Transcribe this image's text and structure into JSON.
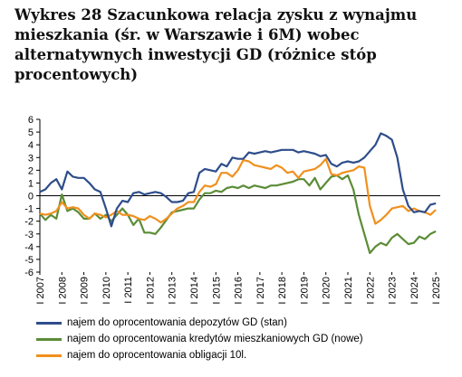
{
  "title": "Wykres 28 Szacunkowa relacja zysku z wynajmu\nmieszkania (śr. w Warszawie i 6M) wobec\nalternatywnych inwestycji GD (różnice stóp\nprocentowych)",
  "chart_data": {
    "type": "line",
    "ylim": [
      -6,
      6
    ],
    "yticks": [
      6,
      5,
      4,
      3,
      2,
      1,
      0,
      -1,
      -2,
      -3,
      -4,
      -5,
      -6
    ],
    "xlim": [
      2007,
      2025.2
    ],
    "xtick_labels": [
      "I 2007",
      "I 2008",
      "I 2009",
      "I 2010",
      "I 2011",
      "I 2012",
      "I 2013",
      "I 2014",
      "I 2015",
      "I 2016",
      "I 2017",
      "I 2018",
      "I 2019",
      "I 2020",
      "I 2021",
      "I 2022",
      "I 2023",
      "I 2024",
      "I 2025"
    ],
    "grid": false,
    "legend_position": "bottom",
    "series": [
      {
        "name": "najem do oprocentowania depozytów GD (stan)",
        "color": "#2E4D8A",
        "x": [
          2007.0,
          2007.25,
          2007.5,
          2007.75,
          2008.0,
          2008.25,
          2008.5,
          2008.75,
          2009.0,
          2009.25,
          2009.5,
          2009.75,
          2010.0,
          2010.25,
          2010.5,
          2010.75,
          2011.0,
          2011.25,
          2011.5,
          2011.75,
          2012.0,
          2012.25,
          2012.5,
          2012.75,
          2013.0,
          2013.25,
          2013.5,
          2013.75,
          2014.0,
          2014.25,
          2014.5,
          2014.75,
          2015.0,
          2015.25,
          2015.5,
          2015.75,
          2016.0,
          2016.25,
          2016.5,
          2016.75,
          2017.0,
          2017.25,
          2017.5,
          2017.75,
          2018.0,
          2018.25,
          2018.5,
          2018.75,
          2019.0,
          2019.25,
          2019.5,
          2019.75,
          2020.0,
          2020.25,
          2020.5,
          2020.75,
          2021.0,
          2021.25,
          2021.5,
          2021.75,
          2022.0,
          2022.25,
          2022.5,
          2022.75,
          2023.0,
          2023.25,
          2023.5,
          2023.75,
          2024.0,
          2024.25,
          2024.5,
          2024.75,
          2025.0
        ],
        "y": [
          0.3,
          0.5,
          1.0,
          1.3,
          0.5,
          1.9,
          1.5,
          1.4,
          1.4,
          1.0,
          0.5,
          0.3,
          -1.0,
          -2.4,
          -1.0,
          -0.4,
          -0.5,
          0.2,
          0.3,
          0.1,
          0.2,
          0.3,
          0.2,
          -0.1,
          -0.5,
          -0.5,
          -0.4,
          0.2,
          0.3,
          1.8,
          2.1,
          2.0,
          1.9,
          2.5,
          2.3,
          3.0,
          2.9,
          2.9,
          3.4,
          3.3,
          3.4,
          3.5,
          3.4,
          3.5,
          3.6,
          3.6,
          3.6,
          3.4,
          3.5,
          3.4,
          3.3,
          3.1,
          3.2,
          2.5,
          2.3,
          2.6,
          2.7,
          2.6,
          2.7,
          3.0,
          3.5,
          4.0,
          4.9,
          4.7,
          4.4,
          3.0,
          0.5,
          -0.8,
          -1.3,
          -1.2,
          -1.3,
          -0.7,
          -0.6
        ]
      },
      {
        "name": "najem do oprocentowania kredytów mieszkaniowych GD (nowe)",
        "color": "#5B8C36",
        "x": [
          2007.0,
          2007.25,
          2007.5,
          2007.75,
          2008.0,
          2008.25,
          2008.5,
          2008.75,
          2009.0,
          2009.25,
          2009.5,
          2009.75,
          2010.0,
          2010.25,
          2010.5,
          2010.75,
          2011.0,
          2011.25,
          2011.5,
          2011.75,
          2012.0,
          2012.25,
          2012.5,
          2012.75,
          2013.0,
          2013.25,
          2013.5,
          2013.75,
          2014.0,
          2014.25,
          2014.5,
          2014.75,
          2015.0,
          2015.25,
          2015.5,
          2015.75,
          2016.0,
          2016.25,
          2016.5,
          2016.75,
          2017.0,
          2017.25,
          2017.5,
          2017.75,
          2018.0,
          2018.25,
          2018.5,
          2018.75,
          2019.0,
          2019.25,
          2019.5,
          2019.75,
          2020.0,
          2020.25,
          2020.5,
          2020.75,
          2021.0,
          2021.25,
          2021.5,
          2021.75,
          2022.0,
          2022.25,
          2022.5,
          2022.75,
          2023.0,
          2023.25,
          2023.5,
          2023.75,
          2024.0,
          2024.25,
          2024.5,
          2024.75,
          2025.0
        ],
        "y": [
          -1.4,
          -1.9,
          -1.5,
          -1.8,
          0.1,
          -1.2,
          -1.0,
          -1.3,
          -1.8,
          -1.8,
          -1.4,
          -1.8,
          -1.5,
          -2.0,
          -1.5,
          -1.0,
          -1.5,
          -2.3,
          -1.8,
          -2.9,
          -2.9,
          -3.0,
          -2.5,
          -1.9,
          -1.3,
          -1.2,
          -1.1,
          -1.0,
          -1.0,
          -0.3,
          0.2,
          0.2,
          0.4,
          0.3,
          0.6,
          0.7,
          0.6,
          0.8,
          0.6,
          0.8,
          0.7,
          0.6,
          0.8,
          0.8,
          0.9,
          1.0,
          1.1,
          1.3,
          1.3,
          0.8,
          1.4,
          0.5,
          1.0,
          1.5,
          1.6,
          1.3,
          1.6,
          0.5,
          -1.5,
          -3.0,
          -4.5,
          -4.0,
          -3.7,
          -3.9,
          -3.3,
          -3.0,
          -3.4,
          -3.8,
          -3.7,
          -3.2,
          -3.4,
          -3.0,
          -2.8
        ]
      },
      {
        "name": "najem do oprocentowania obligacji 10l.",
        "color": "#F0901E",
        "x": [
          2007.0,
          2007.25,
          2007.5,
          2007.75,
          2008.0,
          2008.25,
          2008.5,
          2008.75,
          2009.0,
          2009.25,
          2009.5,
          2009.75,
          2010.0,
          2010.25,
          2010.5,
          2010.75,
          2011.0,
          2011.25,
          2011.5,
          2011.75,
          2012.0,
          2012.25,
          2012.5,
          2012.75,
          2013.0,
          2013.25,
          2013.5,
          2013.75,
          2014.0,
          2014.25,
          2014.5,
          2014.75,
          2015.0,
          2015.25,
          2015.5,
          2015.75,
          2016.0,
          2016.25,
          2016.5,
          2016.75,
          2017.0,
          2017.25,
          2017.5,
          2017.75,
          2018.0,
          2018.25,
          2018.5,
          2018.75,
          2019.0,
          2019.25,
          2019.5,
          2019.75,
          2020.0,
          2020.25,
          2020.5,
          2020.75,
          2021.0,
          2021.25,
          2021.5,
          2021.75,
          2022.0,
          2022.25,
          2022.5,
          2022.75,
          2023.0,
          2023.25,
          2023.5,
          2023.75,
          2024.0,
          2024.25,
          2024.5,
          2024.75,
          2025.0
        ],
        "y": [
          -1.4,
          -1.5,
          -1.4,
          -1.2,
          -0.5,
          -1.0,
          -0.9,
          -1.0,
          -1.5,
          -1.8,
          -1.4,
          -1.5,
          -1.7,
          -1.5,
          -1.2,
          -1.5,
          -1.5,
          -1.6,
          -1.8,
          -1.9,
          -1.6,
          -1.8,
          -2.1,
          -1.8,
          -1.4,
          -1.0,
          -0.8,
          -0.5,
          -0.5,
          0.3,
          0.8,
          0.7,
          0.9,
          1.8,
          1.8,
          1.5,
          2.0,
          2.8,
          2.7,
          2.4,
          2.3,
          2.2,
          2.1,
          2.4,
          2.2,
          1.8,
          1.9,
          1.4,
          1.9,
          2.0,
          2.1,
          2.4,
          2.9,
          1.7,
          1.6,
          1.8,
          1.9,
          2.0,
          2.3,
          2.2,
          -0.8,
          -2.2,
          -1.9,
          -1.5,
          -1.0,
          -0.9,
          -0.8,
          -1.2,
          -1.0,
          -1.2,
          -1.3,
          -1.5,
          -1.1
        ]
      }
    ]
  }
}
